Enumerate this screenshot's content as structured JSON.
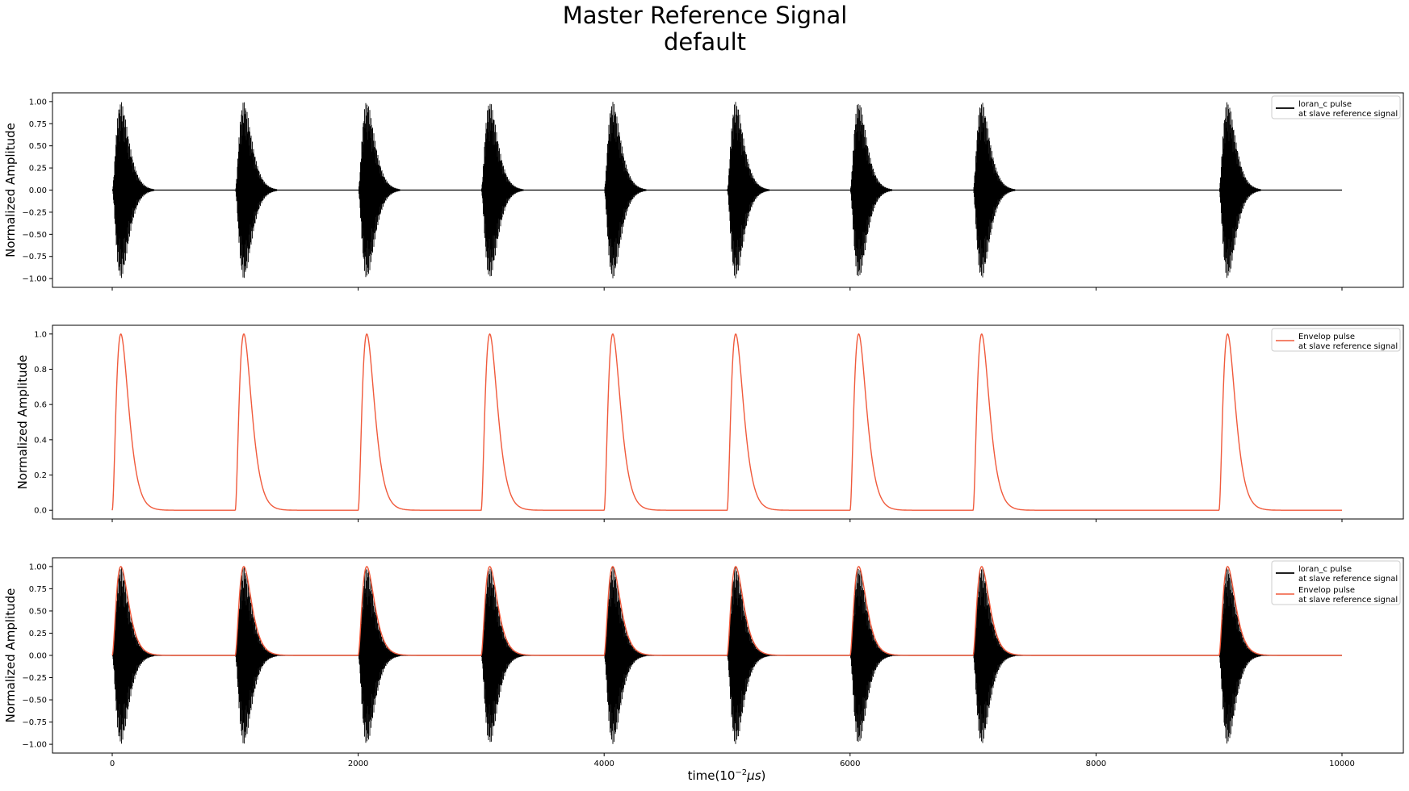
{
  "figure": {
    "title_line1": "Master Reference Signal",
    "title_line2": "default",
    "xlabel": "time(10",
    "xlabel_sup": "−2",
    "xlabel_mu": "μs",
    "xlabel_end": ")"
  },
  "colors": {
    "loran": "#000000",
    "envelop": "#f05a3c",
    "axis": "#000000"
  },
  "chart_data": [
    {
      "type": "line",
      "name": "loran_c panel",
      "ylabel": "Normalized Amplitude",
      "xlim": [
        0,
        10000
      ],
      "ylim": [
        -1.0,
        1.0
      ],
      "x_ticks": [
        0,
        2000,
        4000,
        6000,
        8000,
        10000
      ],
      "y_ticks": [
        "1.00",
        "0.75",
        "0.50",
        "0.25",
        "0.00",
        "−0.25",
        "−0.50",
        "−0.75",
        "−1.00"
      ],
      "y_tick_values": [
        1.0,
        0.75,
        0.5,
        0.25,
        0.0,
        -0.25,
        -0.5,
        -0.75,
        -1.0
      ],
      "pulse_starts": [
        0,
        1000,
        2000,
        3000,
        4000,
        5000,
        6000,
        7000,
        9000
      ],
      "peak_offset": 70,
      "series": [
        {
          "name": "loran_c pulse",
          "legend_line1": "loran_c pulse",
          "legend_line2": "at slave reference signal",
          "kind": "carrier",
          "peak": 1.0
        }
      ]
    },
    {
      "type": "line",
      "name": "envelop panel",
      "ylabel": "Normalized Amplitude",
      "xlim": [
        0,
        10000
      ],
      "ylim": [
        0.0,
        1.0
      ],
      "x_ticks": [
        0,
        2000,
        4000,
        6000,
        8000,
        10000
      ],
      "y_ticks": [
        "1.0",
        "0.8",
        "0.6",
        "0.4",
        "0.2",
        "0.0"
      ],
      "y_tick_values": [
        1.0,
        0.8,
        0.6,
        0.4,
        0.2,
        0.0
      ],
      "pulse_starts": [
        0,
        1000,
        2000,
        3000,
        4000,
        5000,
        6000,
        7000,
        9000
      ],
      "peak_offset": 70,
      "series": [
        {
          "name": "Envelop pulse",
          "legend_line1": "Envelop pulse",
          "legend_line2": "at slave reference signal",
          "kind": "envelope",
          "peak": 1.0
        }
      ]
    },
    {
      "type": "line",
      "name": "combined panel",
      "ylabel": "Normalized Amplitude",
      "xlim": [
        0,
        10000
      ],
      "ylim": [
        -1.0,
        1.0
      ],
      "x_ticks": [
        0,
        2000,
        4000,
        6000,
        8000,
        10000
      ],
      "x_tick_labels": [
        "0",
        "2000",
        "4000",
        "6000",
        "8000",
        "10000"
      ],
      "y_ticks": [
        "1.00",
        "0.75",
        "0.50",
        "0.25",
        "0.00",
        "−0.25",
        "−0.50",
        "−0.75",
        "−1.00"
      ],
      "y_tick_values": [
        1.0,
        0.75,
        0.5,
        0.25,
        0.0,
        -0.25,
        -0.5,
        -0.75,
        -1.0
      ],
      "pulse_starts": [
        0,
        1000,
        2000,
        3000,
        4000,
        5000,
        6000,
        7000,
        9000
      ],
      "peak_offset": 70,
      "series": [
        {
          "name": "loran_c pulse",
          "legend_line1": "loran_c pulse",
          "legend_line2": "at slave reference signal",
          "kind": "carrier",
          "peak": 1.0
        },
        {
          "name": "Envelop pulse",
          "legend_line1": "Envelop pulse",
          "legend_line2": "at slave reference signal",
          "kind": "envelope",
          "peak": 1.0
        }
      ]
    }
  ]
}
